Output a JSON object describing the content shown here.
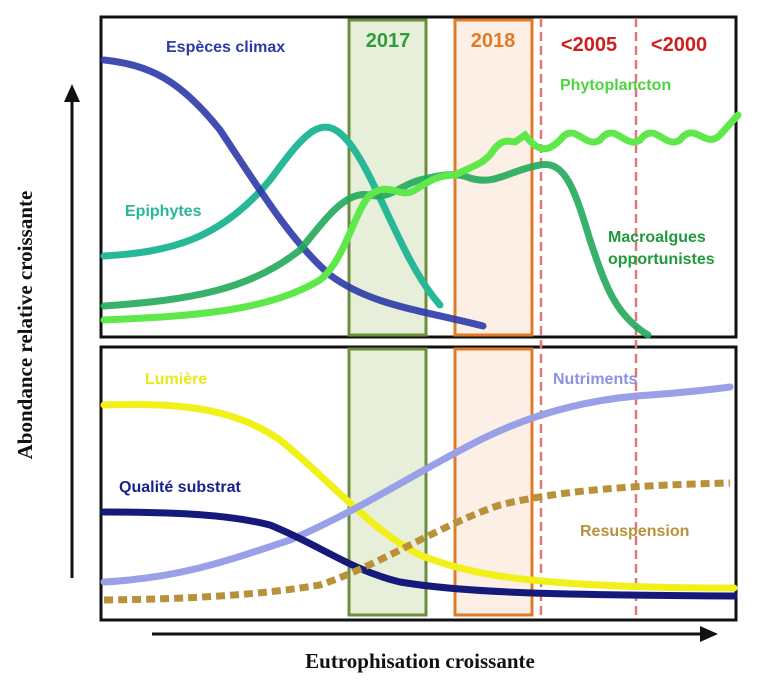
{
  "axes": {
    "y_title": "Abondance relative croissante",
    "x_title": "Eutrophisation croissante"
  },
  "periods": [
    {
      "label": "2017",
      "color": "#2e9e3a",
      "box_stroke": "#6b8f3c",
      "box_fill": "#dfe8cc"
    },
    {
      "label": "2018",
      "color": "#e07b2a",
      "box_stroke": "#e07b2a",
      "box_fill": "#fbe9dd"
    },
    {
      "label": "<2005",
      "color": "#cc1f1f",
      "line": "#e07878"
    },
    {
      "label": "<2000",
      "color": "#cc1f1f",
      "line": "#e07878"
    }
  ],
  "top_panel": {
    "curves": [
      {
        "label": "Espèces climax",
        "color": "#2c3aa8",
        "label_color": "#2c3aa8"
      },
      {
        "label": "Epiphytes",
        "color": "#27b898",
        "label_color": "#27b898"
      },
      {
        "label": "Phytoplancton",
        "color": "#5ee84a",
        "label_color": "#4cd43c"
      },
      {
        "label": "Macroalgues opportunistes",
        "label_line1": "Macroalgues",
        "label_line2": "opportunistes",
        "color": "#22a85a",
        "label_color": "#1f9a3c"
      }
    ]
  },
  "bottom_panel": {
    "curves": [
      {
        "label": "Lumière",
        "color": "#f2f019",
        "label_color": "#e8e81a"
      },
      {
        "label": "Nutriments",
        "color": "#9aa0e8",
        "label_color": "#8c92e0"
      },
      {
        "label": "Qualité substrat",
        "color": "#151a7a",
        "label_color": "#1a1f8c"
      },
      {
        "label": "Resuspension",
        "color": "#b8913a",
        "label_color": "#b8913a"
      }
    ]
  }
}
